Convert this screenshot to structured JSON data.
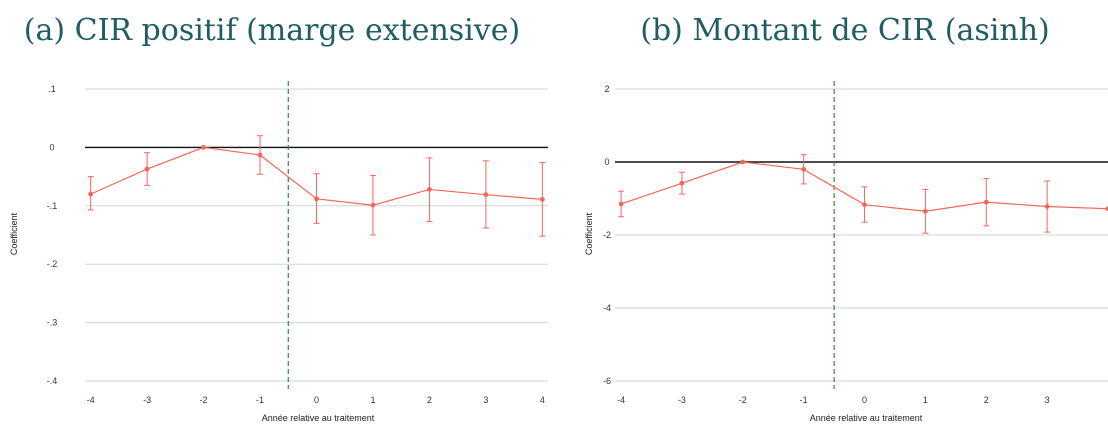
{
  "colors": {
    "series": "#f0685a",
    "zero_line": "#111111",
    "treatment_line": "#2e8b2e",
    "grid": "#d3d3d3",
    "title": "#1f5c63"
  },
  "chart_data": [
    {
      "type": "line",
      "title": "(a) CIR positif (marge extensive)",
      "xlabel": "Année relative au traitement",
      "ylabel": "Coefficient",
      "x": [
        -4,
        -3,
        -2,
        -1,
        0,
        1,
        2,
        3,
        4
      ],
      "xtick_labels": [
        "-4",
        "-3",
        "-2",
        "-1",
        "0",
        "1",
        "2",
        "3",
        "4"
      ],
      "xlim": [
        -4.1,
        4.1
      ],
      "ylim": [
        -0.4,
        0.1
      ],
      "yticks": [
        0.1,
        0,
        -0.1,
        -0.2,
        -0.3,
        -0.4
      ],
      "ytick_labels": [
        ".1",
        "0",
        "-.1",
        "-.2",
        "-.3",
        "-.4"
      ],
      "grid": true,
      "treatment_x": -0.5,
      "series": [
        {
          "y": [
            -0.08,
            -0.037,
            0.0,
            -0.013,
            -0.088,
            -0.099,
            -0.072,
            -0.081,
            -0.089
          ],
          "ci_low": [
            -0.107,
            -0.065,
            0.0,
            -0.046,
            -0.13,
            -0.15,
            -0.127,
            -0.138,
            -0.152
          ],
          "ci_high": [
            -0.05,
            -0.009,
            0.0,
            0.02,
            -0.045,
            -0.048,
            -0.018,
            -0.023,
            -0.026
          ]
        }
      ]
    },
    {
      "type": "line",
      "title": "(b) Montant de CIR (asinh)",
      "xlabel": "Année relative au traitement",
      "ylabel": "Coefficient",
      "x": [
        -4,
        -3,
        -2,
        -1,
        0,
        1,
        2,
        3,
        4
      ],
      "xtick_labels": [
        "-4",
        "-3",
        "-2",
        "-1",
        "0",
        "1",
        "2",
        "3"
      ],
      "xtick_values": [
        -4,
        -3,
        -2,
        -1,
        0,
        1,
        2,
        3
      ],
      "xlim": [
        -4.1,
        4.0
      ],
      "ylim": [
        -6,
        2
      ],
      "yticks": [
        2,
        0,
        -2,
        -4,
        -6
      ],
      "ytick_labels": [
        "2",
        "0",
        "-2",
        "-4",
        "-6"
      ],
      "grid": true,
      "treatment_x": -0.5,
      "series": [
        {
          "y": [
            -1.15,
            -0.58,
            0.0,
            -0.2,
            -1.17,
            -1.35,
            -1.1,
            -1.22,
            -1.28
          ],
          "ci_low": [
            -1.5,
            -0.88,
            0.0,
            -0.6,
            -1.65,
            -1.95,
            -1.75,
            -1.92,
            null
          ],
          "ci_high": [
            -0.8,
            -0.28,
            0.0,
            0.2,
            -0.68,
            -0.75,
            -0.45,
            -0.52,
            null
          ]
        }
      ]
    }
  ]
}
